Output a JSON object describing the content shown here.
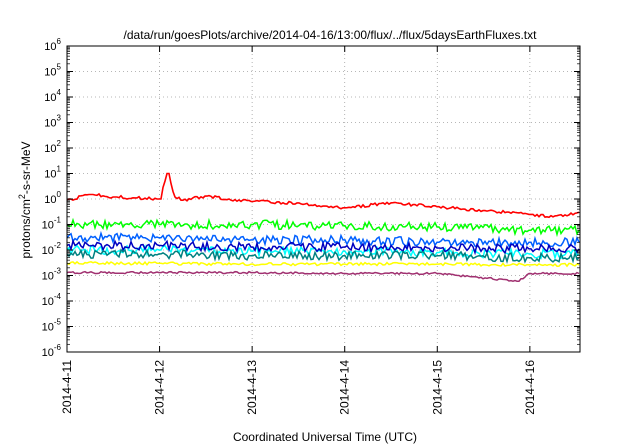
{
  "chart_data": {
    "type": "line",
    "title": "/data/run/goesPlots/archive/2014-04-16/13:00/flux/../flux/5daysEarthFluxes.txt",
    "xlabel": "Coordinated Universal Time (UTC)",
    "ylabel": {
      "base": "protons/cm",
      "sup": "2",
      "rest": "-s-sr-MeV"
    },
    "yscale": "log",
    "ylim_exp": [
      -6,
      6
    ],
    "y_ticks": [
      {
        "base": "10",
        "exp": "-6"
      },
      {
        "base": "10",
        "exp": "-5"
      },
      {
        "base": "10",
        "exp": "-4"
      },
      {
        "base": "10",
        "exp": "-3"
      },
      {
        "base": "10",
        "exp": "-2"
      },
      {
        "base": "10",
        "exp": "-1"
      },
      {
        "base": "10",
        "exp": "0"
      },
      {
        "base": "10",
        "exp": "1"
      },
      {
        "base": "10",
        "exp": "2"
      },
      {
        "base": "10",
        "exp": "3"
      },
      {
        "base": "10",
        "exp": "4"
      },
      {
        "base": "10",
        "exp": "5"
      },
      {
        "base": "10",
        "exp": "6"
      }
    ],
    "x_range": [
      "2014-04-11 00:00",
      "2014-04-16 13:00"
    ],
    "x_ticks": [
      "2014-4-11",
      "2014-4-12",
      "2014-4-13",
      "2014-4-14",
      "2014-4-15",
      "2014-4-16"
    ],
    "grid": true,
    "series": [
      {
        "color": "#ff0000",
        "x": [
          "2014-04-11 00:00",
          "2014-04-11 06:00",
          "2014-04-11 12:00",
          "2014-04-11 18:00",
          "2014-04-12 00:00",
          "2014-04-12 02:00",
          "2014-04-12 04:00",
          "2014-04-12 06:00",
          "2014-04-12 12:00",
          "2014-04-12 18:00",
          "2014-04-13 00:00",
          "2014-04-13 12:00",
          "2014-04-14 00:00",
          "2014-04-14 12:00",
          "2014-04-15 00:00",
          "2014-04-15 12:00",
          "2014-04-16 00:00",
          "2014-04-16 06:00",
          "2014-04-16 13:00"
        ],
        "y": [
          0.9,
          1.5,
          1.2,
          1.1,
          1.0,
          10,
          1.2,
          0.9,
          1.3,
          1.0,
          0.8,
          0.7,
          0.45,
          0.7,
          0.5,
          0.35,
          0.25,
          0.2,
          0.3
        ]
      },
      {
        "color": "#00ff00",
        "x": [
          "2014-04-11 00:00",
          "2014-04-12 00:00",
          "2014-04-13 00:00",
          "2014-04-14 00:00",
          "2014-04-15 00:00",
          "2014-04-16 00:00",
          "2014-04-16 13:00"
        ],
        "y": [
          0.1,
          0.1,
          0.1,
          0.09,
          0.08,
          0.06,
          0.06
        ]
      },
      {
        "color": "#00ffff",
        "x": [
          "2014-04-11 00:00",
          "2014-04-12 00:00",
          "2014-04-13 00:00",
          "2014-04-14 00:00",
          "2014-04-15 00:00",
          "2014-04-16 00:00",
          "2014-04-16 13:00"
        ],
        "y": [
          0.01,
          0.01,
          0.009,
          0.009,
          0.008,
          0.007,
          0.007
        ]
      },
      {
        "color": "#0060ff",
        "x": [
          "2014-04-11 00:00",
          "2014-04-12 00:00",
          "2014-04-13 00:00",
          "2014-04-14 00:00",
          "2014-04-15 00:00",
          "2014-04-16 00:00",
          "2014-04-16 13:00"
        ],
        "y": [
          0.03,
          0.03,
          0.025,
          0.025,
          0.02,
          0.02,
          0.02
        ]
      },
      {
        "color": "#0000c0",
        "x": [
          "2014-04-11 00:00",
          "2014-04-12 00:00",
          "2014-04-13 00:00",
          "2014-04-14 00:00",
          "2014-04-15 00:00",
          "2014-04-16 00:00",
          "2014-04-16 13:00"
        ],
        "y": [
          0.015,
          0.015,
          0.013,
          0.013,
          0.012,
          0.011,
          0.011
        ]
      },
      {
        "color": "#008080",
        "x": [
          "2014-04-11 00:00",
          "2014-04-12 00:00",
          "2014-04-13 00:00",
          "2014-04-14 00:00",
          "2014-04-15 00:00",
          "2014-04-16 00:00",
          "2014-04-16 13:00"
        ],
        "y": [
          0.007,
          0.007,
          0.006,
          0.006,
          0.006,
          0.005,
          0.005
        ]
      },
      {
        "color": "#ffff00",
        "x": [
          "2014-04-11 00:00",
          "2014-04-12 00:00",
          "2014-04-13 00:00",
          "2014-04-14 00:00",
          "2014-04-15 00:00",
          "2014-04-16 00:00",
          "2014-04-16 13:00"
        ],
        "y": [
          0.003,
          0.003,
          0.0028,
          0.0028,
          0.0028,
          0.0026,
          0.0026
        ]
      },
      {
        "color": "#a03070",
        "x": [
          "2014-04-11 00:00",
          "2014-04-12 00:00",
          "2014-04-13 00:00",
          "2014-04-14 00:00",
          "2014-04-15 00:00",
          "2014-04-15 21:00",
          "2014-04-16 00:00",
          "2014-04-16 13:00"
        ],
        "y": [
          0.0013,
          0.0013,
          0.0013,
          0.0012,
          0.0012,
          0.0006,
          0.0012,
          0.0012
        ]
      }
    ]
  }
}
